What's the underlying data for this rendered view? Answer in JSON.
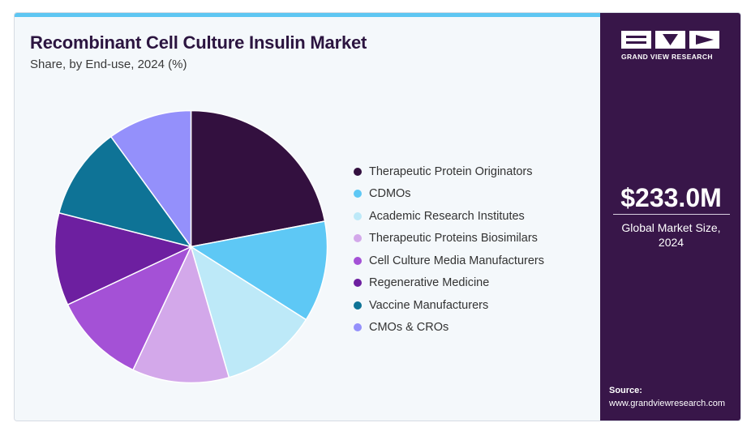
{
  "header": {
    "title": "Recombinant Cell Culture Insulin Market",
    "subtitle": "Share, by End-use, 2024 (%)"
  },
  "brand": {
    "name": "GRAND VIEW RESEARCH",
    "logo_icon": "gvr-logo-icon"
  },
  "summary": {
    "value": "$233.0M",
    "label_line1": "Global Market Size,",
    "label_line2": "2024"
  },
  "source": {
    "label": "Source:",
    "url": "www.grandviewresearch.com"
  },
  "colors": {
    "accent": "#5ec6f2",
    "sidebar": "#381649",
    "title": "#2c1540"
  },
  "chart_data": {
    "type": "pie",
    "title": "Recombinant Cell Culture Insulin Market",
    "subtitle": "Share, by End-use, 2024 (%)",
    "legend_position": "right",
    "slices": [
      {
        "name": "Therapeutic Protein Originators",
        "value": 22.0,
        "color": "#33103f"
      },
      {
        "name": "CDMOs",
        "value": 12.0,
        "color": "#5ec8f5"
      },
      {
        "name": "Academic Research Institutes",
        "value": 11.5,
        "color": "#bde9f8"
      },
      {
        "name": "Therapeutic Proteins Biosimilars",
        "value": 11.5,
        "color": "#d3a8ea"
      },
      {
        "name": "Cell Culture Media Manufacturers",
        "value": 11.0,
        "color": "#a451d6"
      },
      {
        "name": "Regenerative Medicine",
        "value": 11.0,
        "color": "#6d1fa0"
      },
      {
        "name": "Vaccine Manufacturers",
        "value": 11.0,
        "color": "#0e7396"
      },
      {
        "name": "CMOs & CROs",
        "value": 10.0,
        "color": "#9490fb"
      }
    ]
  }
}
